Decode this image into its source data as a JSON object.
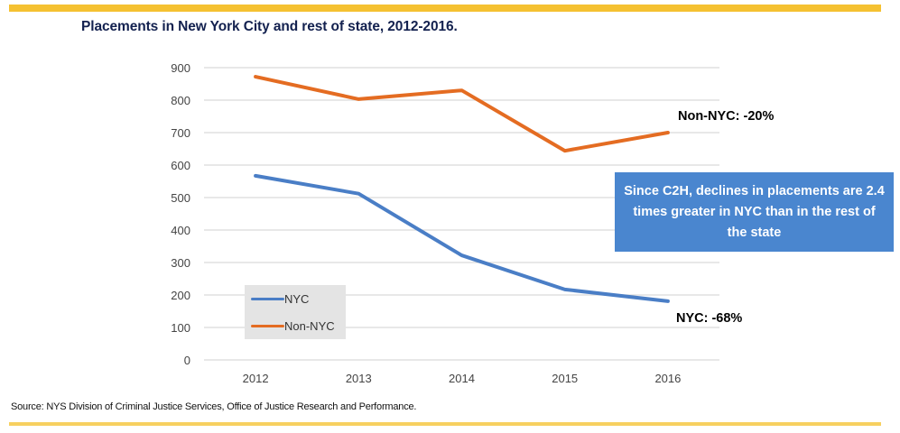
{
  "title": "Placements in New York City and rest of state, 2012-2016.",
  "source": "Source: NYS Division of Criminal Justice Services, Office of Justice Research and Performance.",
  "callout": "Since C2H, declines in placements are 2.4 times greater in NYC than in the rest of the state",
  "colors": {
    "nyc": "#4a7ec6",
    "non_nyc": "#e46c22",
    "accent_rule": "#f5c131",
    "title": "#13214f",
    "callout_bg": "#4a86cf"
  },
  "chart_data": {
    "type": "line",
    "title": "Placements in New York City and rest of state, 2012-2016.",
    "xlabel": "",
    "ylabel": "",
    "categories": [
      "2012",
      "2013",
      "2014",
      "2015",
      "2016"
    ],
    "ylim": [
      0,
      900
    ],
    "yticks": [
      0,
      100,
      200,
      300,
      400,
      500,
      600,
      700,
      800,
      900
    ],
    "grid": true,
    "legend_position": "bottom-left",
    "series": [
      {
        "name": "NYC",
        "values": [
          567,
          512,
          322,
          217,
          181
        ],
        "end_label": "NYC: -68%"
      },
      {
        "name": "Non-NYC",
        "values": [
          872,
          803,
          830,
          644,
          700
        ],
        "end_label": "Non-NYC: -20%"
      }
    ]
  }
}
